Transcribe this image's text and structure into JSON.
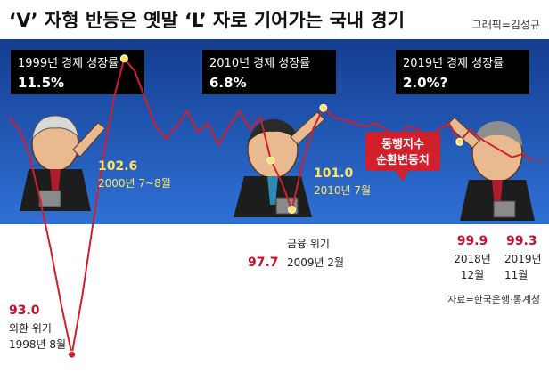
{
  "header": {
    "title": "‘V’ 자형 반등은 옛말 ‘L’ 자로 기어가는 국내 경기",
    "credit": "그래픽=김성규"
  },
  "growth_boxes": [
    {
      "label": "1999년 경제 성장률",
      "value": "11.5%"
    },
    {
      "label": "2010년 경제 성장률",
      "value": "6.8%"
    },
    {
      "label": "2019년 경제 성장률",
      "value": "2.0%?"
    }
  ],
  "legend": {
    "line1": "동행지수",
    "line2": "순환변동치"
  },
  "annotations": [
    {
      "value": "93.0",
      "line1": "외환 위기",
      "line2": "1998년 8월"
    },
    {
      "value": "102.6",
      "line1": "2000년 7~8월"
    },
    {
      "value": "97.7",
      "line1": "금융 위기",
      "line2": "2009년 2월"
    },
    {
      "value": "101.0",
      "line1": "2010년 7월"
    },
    {
      "value": "99.9",
      "line1": "2018년",
      "line2": "12월"
    },
    {
      "value": "99.3",
      "line1": "2019년",
      "line2": "11월"
    }
  ],
  "source": "자료=한국은행·통계청",
  "colors": {
    "band_top": "#143d8f",
    "band_bottom": "#2f71d6",
    "line": "#d11f2c",
    "highlight": "#ffe45c",
    "box": "#000000"
  },
  "illustrations": [
    "caricature-1998",
    "caricature-2009",
    "caricature-2019"
  ],
  "chart_data": {
    "type": "line",
    "title": "‘V’ 자형 반등은 옛말 ‘L’ 자로 기어가는 국내 경기",
    "series": [
      {
        "name": "동행지수 순환변동치",
        "values": [
          100.7,
          100.3,
          99.4,
          98.0,
          96.4,
          94.6,
          93.0,
          94.9,
          97.2,
          99.4,
          101.3,
          102.6,
          102.2,
          101.3,
          100.4,
          100.0,
          100.4,
          100.9,
          100.2,
          100.5,
          99.8,
          100.4,
          100.9,
          100.3,
          100.7,
          99.3,
          98.6,
          97.7,
          99.2,
          100.3,
          101.0,
          100.7,
          100.6,
          100.5,
          100.4,
          100.5,
          100.3,
          100.0,
          100.4,
          100.3,
          100.1,
          100.3,
          100.5,
          99.9,
          100.3,
          100.0,
          99.8,
          99.6,
          99.4,
          99.5,
          99.3
        ],
        "annotated_points": [
          {
            "date": "1998년 8월",
            "value": 93.0
          },
          {
            "date": "2000년 7~8월",
            "value": 102.6
          },
          {
            "date": "2009년 2월",
            "value": 97.7
          },
          {
            "date": "2010년 7월",
            "value": 101.0
          },
          {
            "date": "2018년 12월",
            "value": 99.9
          },
          {
            "date": "2019년 11월",
            "value": 99.3
          }
        ]
      }
    ],
    "growth_rates": [
      {
        "year": 1999,
        "value": 11.5
      },
      {
        "year": 2010,
        "value": 6.8
      },
      {
        "year": 2019,
        "value": 2.0
      }
    ],
    "ylim": [
      92.4,
      104.5
    ],
    "grid": false,
    "legend": "top-right",
    "annotations": [
      "외환 위기",
      "금융 위기"
    ]
  }
}
